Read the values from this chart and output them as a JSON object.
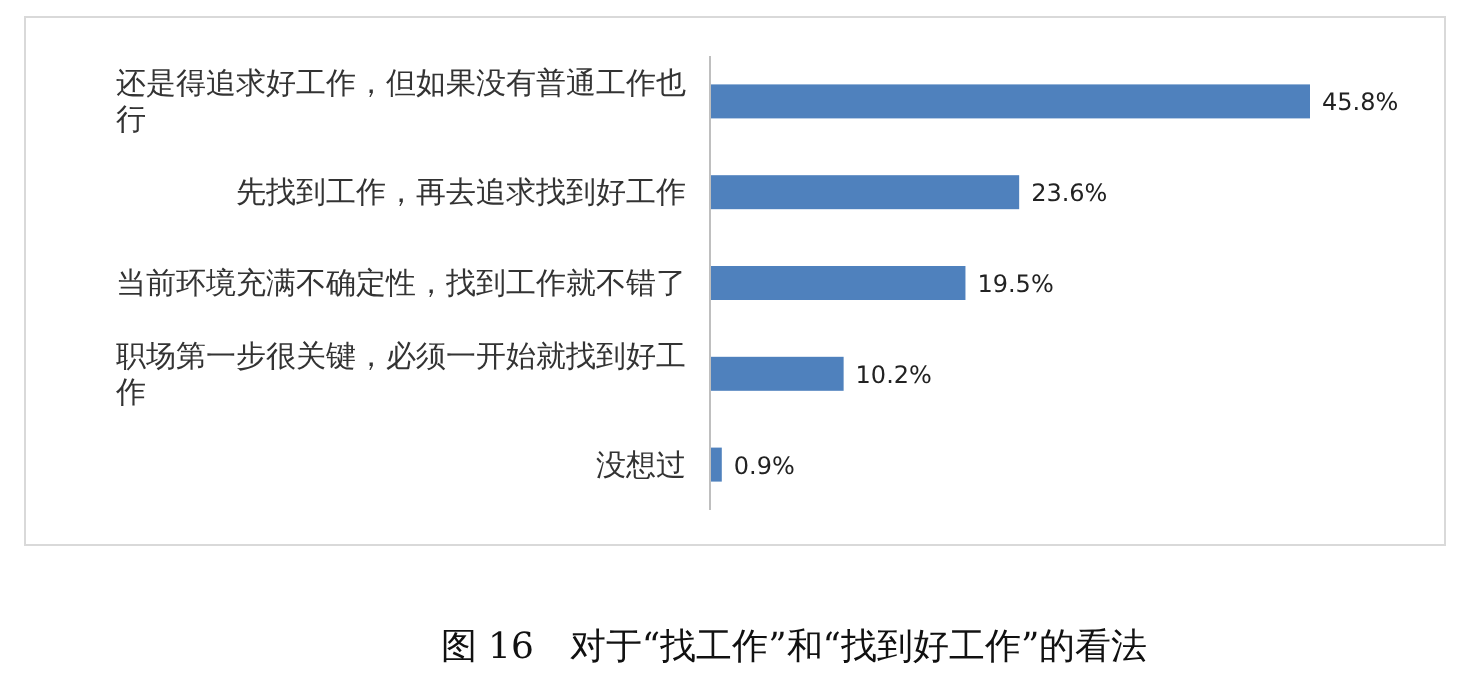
{
  "chart_data": {
    "type": "bar",
    "orientation": "horizontal",
    "title": "图 16　对于“找工作”和“找到好工作”的看法",
    "categories": [
      "还是得追求好工作，但如果没有普通工作也行",
      "先找到工作，再去追求找到好工作",
      "当前环境充满不确定性，找到工作就不错了",
      "职场第一步很关键，必须一开始就找到好工作",
      "没想过"
    ],
    "values": [
      45.8,
      23.6,
      19.5,
      10.2,
      0.9
    ],
    "value_labels": [
      "45.8%",
      "23.6%",
      "19.5%",
      "10.2%",
      "0.9%"
    ],
    "color": "#4f81bd"
  }
}
